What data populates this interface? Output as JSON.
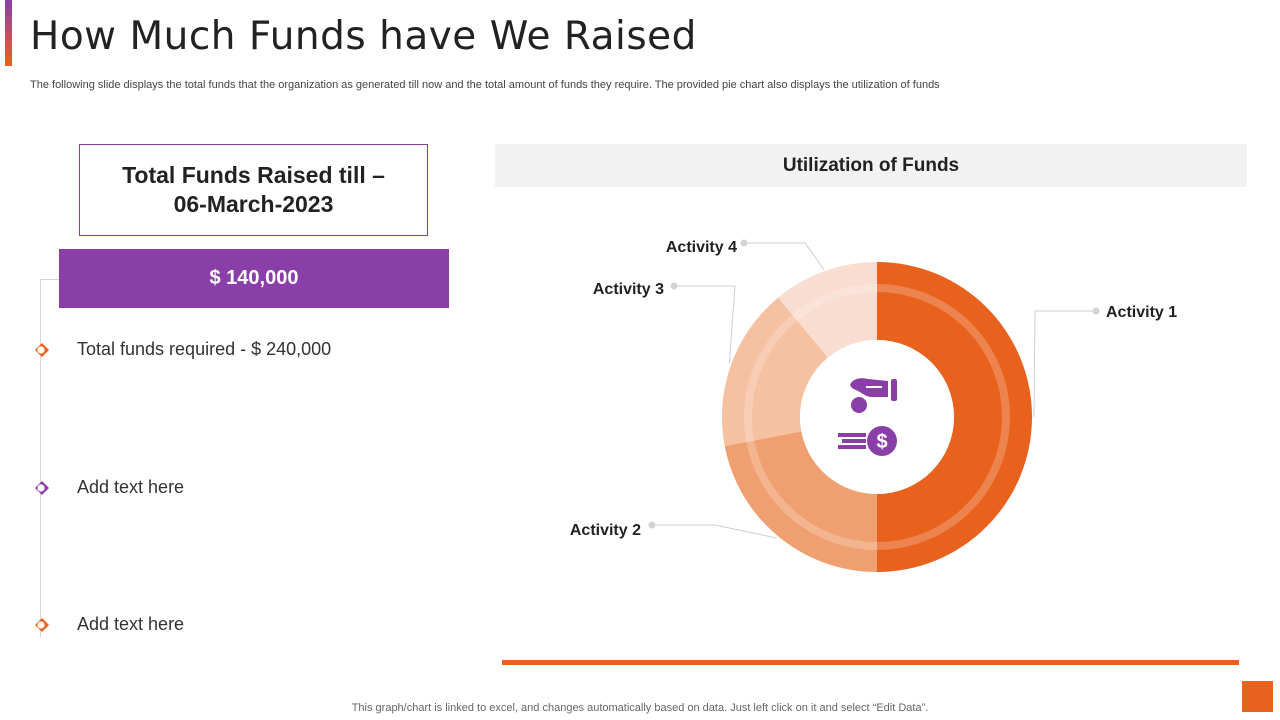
{
  "slide": {
    "title": "How Much Funds have We Raised",
    "subtitle": "The following slide displays the total funds that the organization as generated till now and the total amount of funds they require. The provided pie chart also displays the utilization of funds",
    "footer_note": "This graph/chart is linked to excel,  and changes automatically based on data. Just left click on it and select “Edit Data”."
  },
  "funds": {
    "raised_label_line1": "Total Funds Raised till –",
    "raised_label_line2": "06-March-2023",
    "raised_amount": "$ 140,000",
    "items": [
      {
        "text": "Total funds required - $ 240,000",
        "marker_color": "#e8621e"
      },
      {
        "text": "Add text here",
        "marker_color": "#8a3fa8"
      },
      {
        "text": "Add text here",
        "marker_color": "#e8621e"
      }
    ]
  },
  "colors": {
    "accent_purple": "#8a3fa8",
    "accent_orange": "#e8621e"
  },
  "chart_data": {
    "type": "pie",
    "title": "Utilization of Funds",
    "variant": "donut",
    "center_icon": "hand-coin-money-icon",
    "slices": [
      {
        "label": "Activity 1",
        "value": 50,
        "color": "#e8621e"
      },
      {
        "label": "Activity 2",
        "value": 22,
        "color": "#f0a070"
      },
      {
        "label": "Activity 3",
        "value": 17,
        "color": "#f5c1a1"
      },
      {
        "label": "Activity 4",
        "value": 11,
        "color": "#f9ddd0"
      }
    ]
  }
}
